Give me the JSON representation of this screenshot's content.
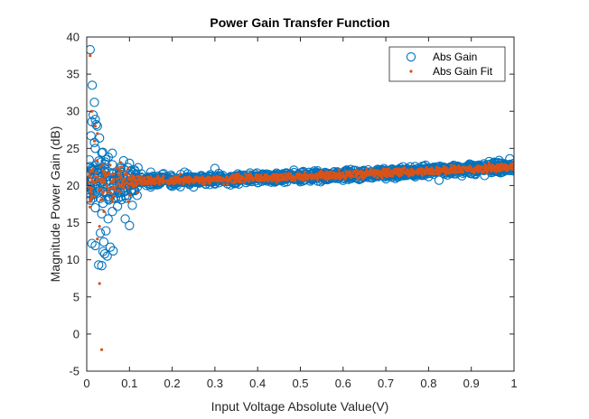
{
  "chart_data": {
    "type": "scatter",
    "title": "Power Gain Transfer Function",
    "xlabel": "Input Voltage Absolute Value(V)",
    "ylabel": "Magnitude Power Gain (dB)",
    "xlim": [
      0,
      1
    ],
    "ylim": [
      -5,
      40
    ],
    "xticks": [
      "0",
      "0.1",
      "0.2",
      "0.3",
      "0.4",
      "0.5",
      "0.6",
      "0.7",
      "0.8",
      "0.9",
      "1"
    ],
    "yticks": [
      "-5",
      "0",
      "5",
      "10",
      "15",
      "20",
      "25",
      "30",
      "35",
      "40"
    ],
    "grid": false,
    "legend_position": "top-right",
    "series": [
      {
        "name": "Abs Gain",
        "marker": "open-circle",
        "color": "#0072BD",
        "points": [
          [
            0.008,
            38.3
          ],
          [
            0.013,
            33.5
          ],
          [
            0.018,
            31.2
          ],
          [
            0.015,
            29.5
          ],
          [
            0.012,
            28.6
          ],
          [
            0.02,
            28.9
          ],
          [
            0.022,
            28.2
          ],
          [
            0.025,
            28.0
          ],
          [
            0.01,
            26.7
          ],
          [
            0.018,
            25.8
          ],
          [
            0.03,
            26.4
          ],
          [
            0.02,
            25.0
          ],
          [
            0.012,
            12.2
          ],
          [
            0.02,
            11.9
          ],
          [
            0.032,
            13.6
          ],
          [
            0.038,
            11.1
          ],
          [
            0.042,
            10.8
          ],
          [
            0.048,
            10.5
          ],
          [
            0.055,
            11.7
          ],
          [
            0.062,
            11.2
          ],
          [
            0.028,
            9.3
          ],
          [
            0.035,
            9.2
          ],
          [
            0.04,
            12.4
          ],
          [
            0.045,
            13.9
          ],
          [
            0.05,
            15.5
          ],
          [
            0.06,
            16.5
          ],
          [
            0.072,
            17.2
          ],
          [
            0.09,
            15.5
          ],
          [
            0.1,
            14.6
          ],
          [
            0.035,
            16.2
          ],
          [
            0.02,
            17.0
          ],
          [
            0.015,
            18.3
          ],
          [
            0.025,
            19.0
          ],
          [
            0.05,
            18.2
          ],
          [
            0.08,
            18.5
          ],
          [
            0.035,
            24.4
          ],
          [
            0.045,
            23.5
          ],
          [
            0.06,
            22.8
          ],
          [
            0.08,
            22.3
          ],
          [
            0.1,
            23.0
          ],
          [
            0.12,
            22.4
          ],
          [
            0.15,
            21.8
          ],
          [
            0.18,
            21.6
          ],
          [
            0.2,
            21.2
          ],
          [
            0.22,
            21.5
          ],
          [
            0.25,
            21.0
          ],
          [
            0.28,
            20.9
          ],
          [
            0.3,
            22.3
          ],
          [
            0.32,
            21.0
          ],
          [
            0.35,
            20.7
          ],
          [
            0.38,
            20.9
          ],
          [
            0.4,
            21.1
          ],
          [
            0.42,
            20.8
          ],
          [
            0.45,
            21.2
          ],
          [
            0.48,
            20.9
          ],
          [
            0.5,
            21.3
          ],
          [
            0.52,
            21.0
          ],
          [
            0.55,
            21.4
          ],
          [
            0.58,
            21.1
          ],
          [
            0.6,
            21.5
          ],
          [
            0.62,
            21.2
          ],
          [
            0.65,
            21.6
          ],
          [
            0.68,
            21.3
          ],
          [
            0.7,
            21.8
          ],
          [
            0.72,
            21.4
          ],
          [
            0.75,
            22.0
          ],
          [
            0.78,
            21.6
          ],
          [
            0.8,
            22.2
          ],
          [
            0.82,
            21.8
          ],
          [
            0.85,
            22.4
          ],
          [
            0.88,
            22.0
          ],
          [
            0.9,
            22.6
          ],
          [
            0.92,
            22.2
          ],
          [
            0.95,
            23.0
          ],
          [
            0.97,
            22.8
          ],
          [
            0.99,
            23.6
          ],
          [
            1.0,
            23.0
          ],
          [
            0.15,
            19.8
          ],
          [
            0.2,
            19.9
          ],
          [
            0.25,
            19.8
          ],
          [
            0.3,
            20.2
          ],
          [
            0.4,
            20.4
          ],
          [
            0.5,
            20.5
          ],
          [
            0.6,
            20.7
          ],
          [
            0.7,
            20.9
          ],
          [
            0.8,
            21.2
          ],
          [
            0.9,
            21.6
          ],
          [
            1.0,
            22.2
          ]
        ]
      },
      {
        "name": "Abs Gain Fit",
        "marker": "dot",
        "color": "#D95319",
        "points": [
          [
            0.008,
            37.5
          ],
          [
            0.012,
            30.0
          ],
          [
            0.02,
            28.0
          ],
          [
            0.018,
            26.0
          ],
          [
            0.025,
            27.0
          ],
          [
            0.03,
            6.8
          ],
          [
            0.035,
            -2.1
          ],
          [
            0.025,
            12.8
          ],
          [
            0.03,
            14.5
          ],
          [
            0.04,
            16.5
          ],
          [
            0.06,
            17.8
          ],
          [
            0.05,
            21.5
          ],
          [
            0.08,
            21.2
          ],
          [
            0.12,
            20.8
          ],
          [
            0.2,
            20.6
          ],
          [
            0.3,
            20.9
          ],
          [
            0.4,
            20.9
          ],
          [
            0.5,
            21.0
          ],
          [
            0.6,
            21.2
          ],
          [
            0.7,
            21.4
          ],
          [
            0.8,
            21.6
          ],
          [
            0.9,
            21.9
          ],
          [
            1.0,
            22.6
          ]
        ]
      }
    ]
  }
}
